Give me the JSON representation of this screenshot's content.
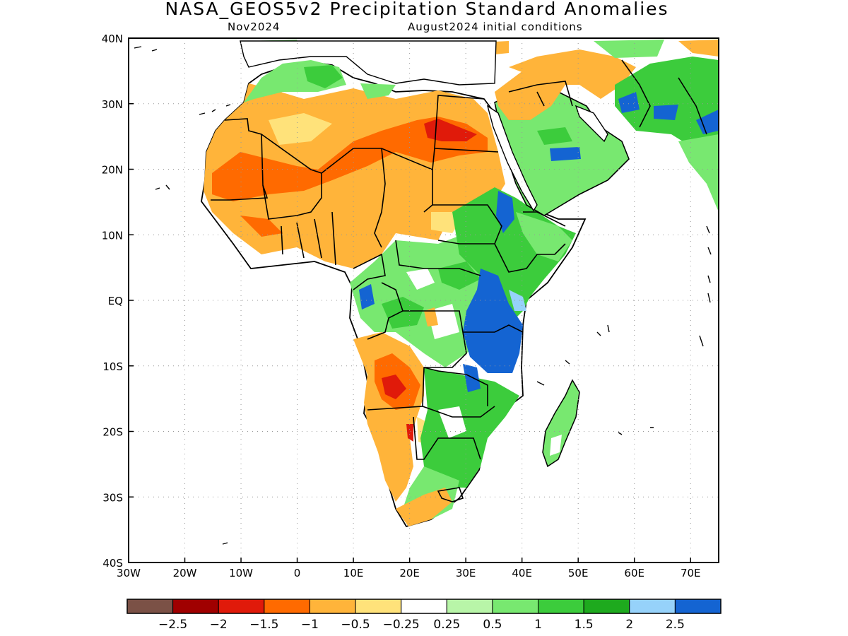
{
  "title": "NASA_GEOS5v2 Precipitation Standard Anomalies",
  "subtitle_left": "Nov2024",
  "subtitle_right": "August2024 initial conditions",
  "axes": {
    "lon_ticks": [
      "30W",
      "20W",
      "10W",
      "0",
      "10E",
      "20E",
      "30E",
      "40E",
      "50E",
      "60E",
      "70E"
    ],
    "lat_ticks": [
      "40N",
      "30N",
      "20N",
      "10N",
      "EQ",
      "10S",
      "20S",
      "30S",
      "40S"
    ],
    "lon_range": [
      -30,
      75
    ],
    "lat_range": [
      -40,
      40
    ],
    "grid": "dotted"
  },
  "colorbar": {
    "colors": [
      "#7b5146",
      "#a00000",
      "#e01a0a",
      "#ff6a00",
      "#ffb43a",
      "#ffe27a",
      "#ffffff",
      "#b8f5a8",
      "#78e870",
      "#3ccc3c",
      "#1eaa1e",
      "#96d2fa",
      "#1464d2"
    ],
    "labels": [
      "-2.5",
      "-2",
      "-1.5",
      "-1",
      "-0.5",
      "-0.25",
      "0.25",
      "0.5",
      "1",
      "1.5",
      "2",
      "2.5"
    ]
  },
  "regions": [
    {
      "name": "sahara-west-dry",
      "color": "#ffb43a"
    },
    {
      "name": "sahara-core-very-dry",
      "color": "#ff6a00"
    },
    {
      "name": "southwest-africa-dry",
      "color": "#ffb43a"
    },
    {
      "name": "angola-very-dry",
      "color": "#ff6a00"
    },
    {
      "name": "east-africa-wet",
      "color": "#3ccc3c"
    },
    {
      "name": "tanzania-very-wet",
      "color": "#1464d2"
    },
    {
      "name": "arabia-wet",
      "color": "#78e870"
    },
    {
      "name": "iran-wet",
      "color": "#3ccc3c"
    }
  ]
}
